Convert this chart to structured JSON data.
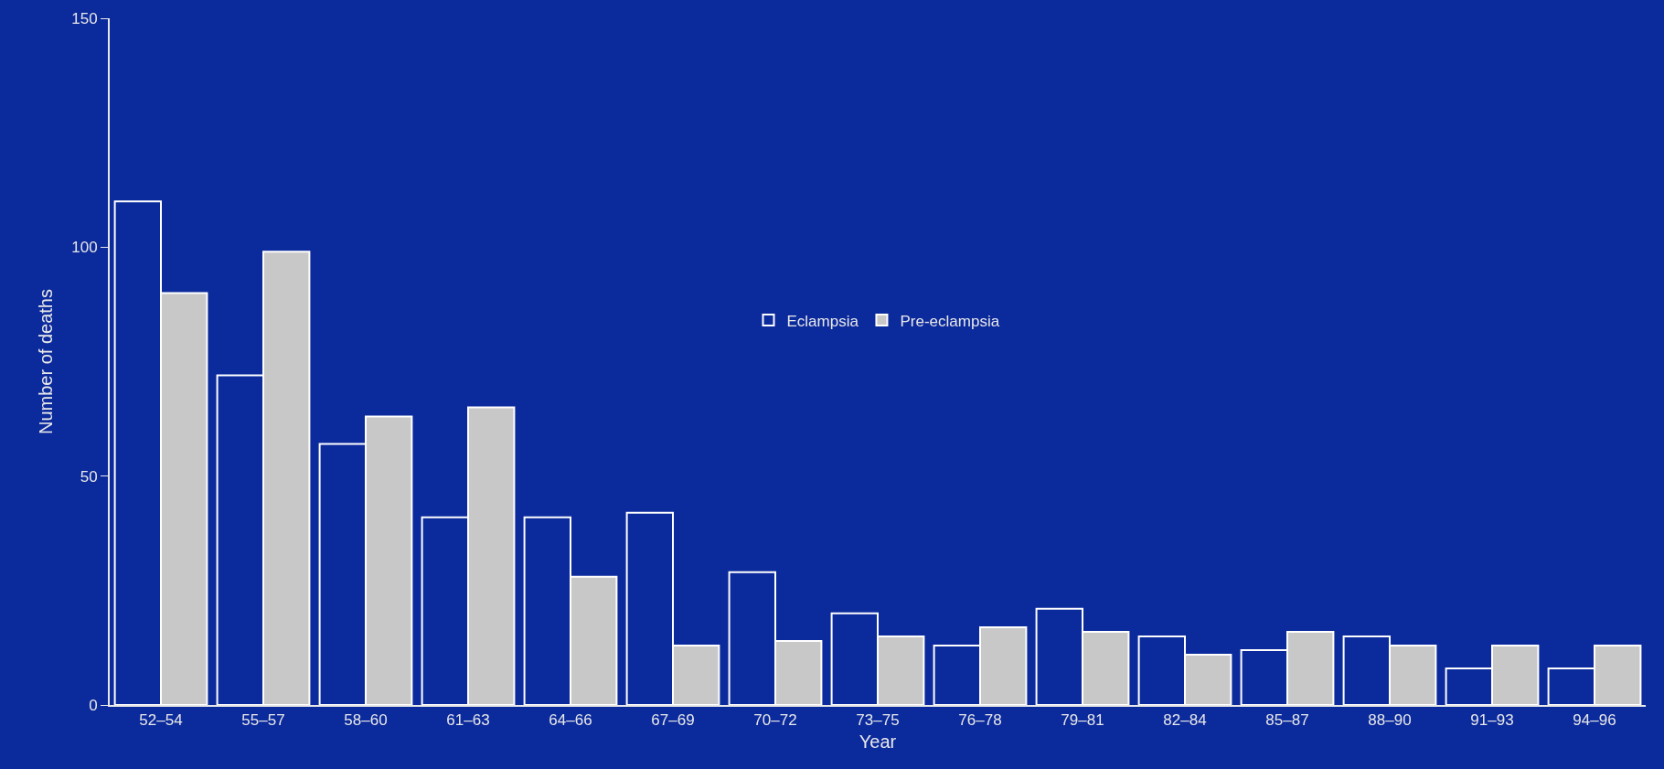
{
  "chart_data": {
    "type": "bar",
    "xlabel": "Year",
    "ylabel": "Number of deaths",
    "categories": [
      "52–54",
      "55–57",
      "58–60",
      "61–63",
      "64–66",
      "67–69",
      "70–72",
      "73–75",
      "76–78",
      "79–81",
      "82–84",
      "85–87",
      "88–90",
      "91–93",
      "94–96"
    ],
    "series": [
      {
        "name": "Eclampsia",
        "color": "#0b2a9c",
        "values": [
          110,
          72,
          57,
          41,
          41,
          42,
          29,
          20,
          13,
          21,
          15,
          12,
          15,
          8,
          8
        ]
      },
      {
        "name": "Pre-eclampsia",
        "color": "#c8c8c8",
        "values": [
          90,
          99,
          63,
          65,
          28,
          13,
          14,
          15,
          17,
          16,
          11,
          16,
          13,
          13,
          13
        ]
      }
    ],
    "ylim": [
      0,
      150
    ],
    "yticks": [
      0,
      50,
      100,
      150
    ],
    "grid": false,
    "legend": "center"
  }
}
